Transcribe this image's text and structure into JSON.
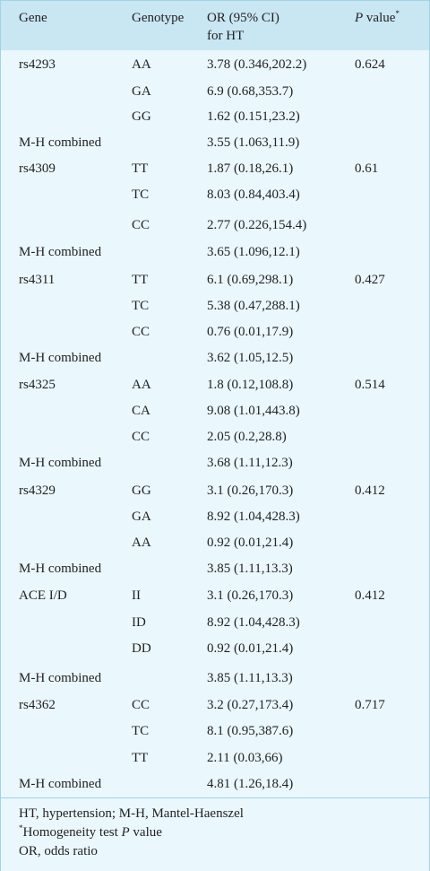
{
  "headers": {
    "gene": "Gene",
    "genotype": "Genotype",
    "or_line1": "OR (95% CI)",
    "or_line2": "for HT",
    "p_prefix": "P",
    "p_suffix": " value",
    "p_mark": "*"
  },
  "rows": [
    {
      "gene": "rs4293",
      "genotype": "AA",
      "or": "3.78 (0.346,202.2)",
      "p": "0.624"
    },
    {
      "gene": "",
      "genotype": "GA",
      "or": "6.9 (0.68,353.7)",
      "p": ""
    },
    {
      "gene": "",
      "genotype": "GG",
      "or": "1.62 (0.151,23.2)",
      "p": ""
    },
    {
      "gene": "M-H combined",
      "genotype": "",
      "or": "3.55 (1.063,11.9)",
      "p": ""
    },
    {
      "gene": "rs4309",
      "genotype": "TT",
      "or": "1.87 (0.18,26.1)",
      "p": "0.61"
    },
    {
      "gene": "",
      "genotype": "TC",
      "or": "8.03 (0.84,403.4)",
      "p": ""
    },
    {
      "gene": "",
      "genotype": "CC",
      "or": "2.77 (0.226,154.4)",
      "p": ""
    },
    {
      "gene": "M-H combined",
      "genotype": "",
      "or": "3.65 (1.096,12.1)",
      "p": ""
    },
    {
      "gene": "rs4311",
      "genotype": "TT",
      "or": "6.1 (0.69,298.1)",
      "p": "0.427"
    },
    {
      "gene": "",
      "genotype": "TC",
      "or": "5.38 (0.47,288.1)",
      "p": ""
    },
    {
      "gene": "",
      "genotype": "CC",
      "or": "0.76 (0.01,17.9)",
      "p": ""
    },
    {
      "gene": "M-H combined",
      "genotype": "",
      "or": "3.62 (1.05,12.5)",
      "p": ""
    },
    {
      "gene": "rs4325",
      "genotype": "AA",
      "or": "1.8 (0.12,108.8)",
      "p": "0.514"
    },
    {
      "gene": "",
      "genotype": "CA",
      "or": "9.08 (1.01,443.8)",
      "p": ""
    },
    {
      "gene": "",
      "genotype": "CC",
      "or": "2.05 (0.2,28.8)",
      "p": ""
    },
    {
      "gene": "M-H combined",
      "genotype": "",
      "or": "3.68 (1.11,12.3)",
      "p": ""
    },
    {
      "gene": "rs4329",
      "genotype": "GG",
      "or": "3.1 (0.26,170.3)",
      "p": "0.412"
    },
    {
      "gene": "",
      "genotype": "GA",
      "or": "8.92 (1.04,428.3)",
      "p": ""
    },
    {
      "gene": "",
      "genotype": "AA",
      "or": "0.92 (0.01,21.4)",
      "p": ""
    },
    {
      "gene": "M-H combined",
      "genotype": "",
      "or": "3.85 (1.11,13.3)",
      "p": ""
    },
    {
      "gene": "ACE I/D",
      "genotype": "II",
      "or": "3.1 (0.26,170.3)",
      "p": "0.412"
    },
    {
      "gene": "",
      "genotype": "ID",
      "or": "8.92 (1.04,428.3)",
      "p": ""
    },
    {
      "gene": "",
      "genotype": "DD",
      "or": "0.92 (0.01,21.4)",
      "p": ""
    },
    {
      "gene": "M-H combined",
      "genotype": "",
      "or": "3.85 (1.11,13.3)",
      "p": ""
    },
    {
      "gene": "rs4362",
      "genotype": "CC",
      "or": "3.2 (0.27,173.4)",
      "p": "0.717"
    },
    {
      "gene": "",
      "genotype": "TC",
      "or": "8.1 (0.95,387.6)",
      "p": ""
    },
    {
      "gene": "",
      "genotype": "TT",
      "or": "2.11 (0.03,66)",
      "p": ""
    },
    {
      "gene": "M-H combined",
      "genotype": "",
      "or": "4.81 (1.26,18.4)",
      "p": ""
    }
  ],
  "footnotes": {
    "line1": "HT, hypertension; M-H, Mantel-Haenszel",
    "line2_mark": "*",
    "line2_prefix": "Homogeneity test ",
    "line2_p": "P",
    "line2_suffix": " value",
    "line3": "OR, odds ratio"
  }
}
